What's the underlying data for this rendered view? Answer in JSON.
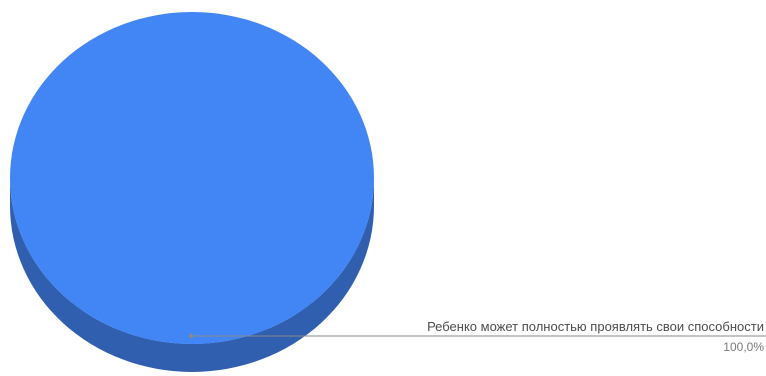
{
  "chart_data": {
    "type": "pie",
    "title": "",
    "style": "3d",
    "slices": [
      {
        "label": "Ребенко может полностью проявлять свои способности",
        "value": 100.0,
        "value_label": "100,0%",
        "color": "#4285f4",
        "side_color": "#2f5fae"
      }
    ],
    "legend": "none"
  },
  "colors": {
    "leader_line": "#8a8a8a",
    "label_text": "#4d4d4d",
    "value_text": "#7a7a7a",
    "background": "#ffffff"
  }
}
